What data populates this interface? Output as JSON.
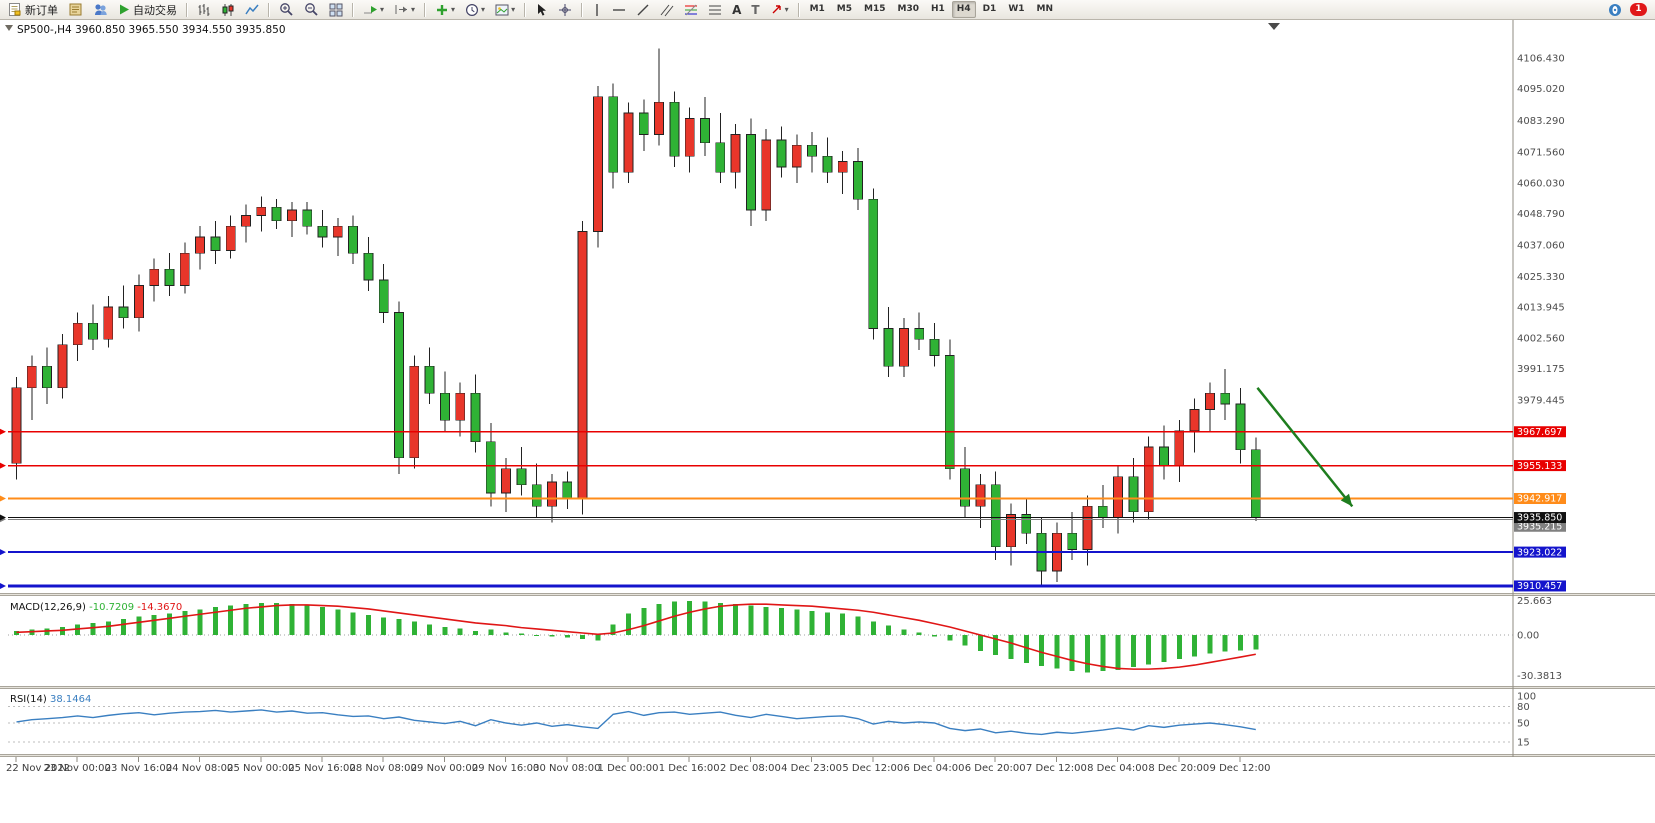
{
  "toolbar": {
    "new_order_label": "新订单",
    "autotrade_label": "自动交易",
    "timeframes": [
      "M1",
      "M5",
      "M15",
      "M30",
      "H1",
      "H4",
      "D1",
      "W1",
      "MN"
    ],
    "active_timeframe": "H4",
    "notification_badge": "1"
  },
  "chart": {
    "symbol_title": "SP500-,H4",
    "ohlc_text": "3960.850 3965.550 3934.550 3935.850"
  },
  "indicators": {
    "macd_label": "MACD(12,26,9)",
    "macd_main_value": "-10.7209",
    "macd_signal_value": "-14.3670",
    "rsi_label": "RSI(14)",
    "rsi_value": "38.1464"
  },
  "chart_data": {
    "type": "candlestick",
    "symbol": "SP500-",
    "timeframe": "H4",
    "ohlc_current": {
      "open": 3960.85,
      "high": 3965.55,
      "low": 3934.55,
      "close": 3935.85
    },
    "ylim": [
      3904,
      4112
    ],
    "price_axis_labels": [
      "4106.430",
      "4095.020",
      "4083.290",
      "4071.560",
      "4060.030",
      "4048.790",
      "4037.060",
      "4025.330",
      "4013.945",
      "4002.560",
      "3991.175",
      "3979.445"
    ],
    "time_labels": [
      "22 Nov 2022",
      "23 Nov 00:00",
      "23 Nov 16:00",
      "24 Nov 08:00",
      "25 Nov 00:00",
      "25 Nov 16:00",
      "28 Nov 08:00",
      "29 Nov 00:00",
      "29 Nov 16:00",
      "30 Nov 08:00",
      "1 Dec 00:00",
      "1 Dec 16:00",
      "2 Dec 08:00",
      "4 Dec 23:00",
      "5 Dec 12:00",
      "6 Dec 04:00",
      "6 Dec 20:00",
      "7 Dec 12:00",
      "8 Dec 04:00",
      "8 Dec 20:00",
      "9 Dec 12:00"
    ],
    "label_every": 4,
    "candles": [
      [
        3956,
        3988,
        3950,
        3984
      ],
      [
        3984,
        3996,
        3972,
        3992
      ],
      [
        3992,
        3999,
        3978,
        3984
      ],
      [
        3984,
        4004,
        3980,
        4000
      ],
      [
        4000,
        4012,
        3994,
        4008
      ],
      [
        4008,
        4015,
        3998,
        4002
      ],
      [
        4002,
        4018,
        3999,
        4014
      ],
      [
        4014,
        4022,
        4006,
        4010
      ],
      [
        4010,
        4026,
        4005,
        4022
      ],
      [
        4022,
        4032,
        4016,
        4028
      ],
      [
        4028,
        4034,
        4018,
        4022
      ],
      [
        4022,
        4038,
        4019,
        4034
      ],
      [
        4034,
        4044,
        4028,
        4040
      ],
      [
        4040,
        4046,
        4030,
        4035
      ],
      [
        4035,
        4048,
        4032,
        4044
      ],
      [
        4044,
        4052,
        4038,
        4048
      ],
      [
        4048,
        4055,
        4042,
        4051
      ],
      [
        4051,
        4054,
        4043,
        4046
      ],
      [
        4046,
        4053,
        4040,
        4050
      ],
      [
        4050,
        4053,
        4041,
        4044
      ],
      [
        4044,
        4050,
        4036,
        4040
      ],
      [
        4040,
        4047,
        4033,
        4044
      ],
      [
        4044,
        4048,
        4030,
        4034
      ],
      [
        4034,
        4040,
        4020,
        4024
      ],
      [
        4024,
        4030,
        4008,
        4012
      ],
      [
        4012,
        4016,
        3952,
        3958
      ],
      [
        3958,
        3996,
        3954,
        3992
      ],
      [
        3992,
        3999,
        3978,
        3982
      ],
      [
        3982,
        3990,
        3968,
        3972
      ],
      [
        3972,
        3986,
        3966,
        3982
      ],
      [
        3982,
        3989,
        3960,
        3964
      ],
      [
        3964,
        3971,
        3940,
        3945
      ],
      [
        3945,
        3958,
        3938,
        3954
      ],
      [
        3954,
        3962,
        3944,
        3948
      ],
      [
        3948,
        3956,
        3936,
        3940
      ],
      [
        3940,
        3952,
        3934,
        3949
      ],
      [
        3949,
        3953,
        3939,
        3943
      ],
      [
        3943,
        4046,
        3937,
        4042
      ],
      [
        4042,
        4096,
        4036,
        4092
      ],
      [
        4092,
        4097,
        4058,
        4064
      ],
      [
        4064,
        4090,
        4060,
        4086
      ],
      [
        4086,
        4091,
        4072,
        4078
      ],
      [
        4078,
        4110,
        4074,
        4090
      ],
      [
        4090,
        4094,
        4066,
        4070
      ],
      [
        4070,
        4088,
        4064,
        4084
      ],
      [
        4084,
        4092,
        4070,
        4075
      ],
      [
        4075,
        4086,
        4060,
        4064
      ],
      [
        4064,
        4082,
        4058,
        4078
      ],
      [
        4078,
        4084,
        4044,
        4050
      ],
      [
        4050,
        4080,
        4046,
        4076
      ],
      [
        4076,
        4081,
        4062,
        4066
      ],
      [
        4066,
        4078,
        4060,
        4074
      ],
      [
        4074,
        4079,
        4064,
        4070
      ],
      [
        4070,
        4077,
        4060,
        4064
      ],
      [
        4064,
        4072,
        4056,
        4068
      ],
      [
        4068,
        4073,
        4050,
        4054
      ],
      [
        4054,
        4058,
        4002,
        4006
      ],
      [
        4006,
        4014,
        3988,
        3992
      ],
      [
        3992,
        4010,
        3988,
        4006
      ],
      [
        4006,
        4012,
        3998,
        4002
      ],
      [
        4002,
        4008,
        3992,
        3996
      ],
      [
        3996,
        4002,
        3950,
        3954
      ],
      [
        3954,
        3962,
        3936,
        3940
      ],
      [
        3940,
        3952,
        3932,
        3948
      ],
      [
        3948,
        3953,
        3920,
        3925
      ],
      [
        3925,
        3941,
        3918,
        3937
      ],
      [
        3937,
        3943,
        3926,
        3930
      ],
      [
        3930,
        3936,
        3911,
        3916
      ],
      [
        3916,
        3934,
        3912,
        3930
      ],
      [
        3930,
        3938,
        3920,
        3924
      ],
      [
        3924,
        3944,
        3918,
        3940
      ],
      [
        3940,
        3948,
        3932,
        3936
      ],
      [
        3936,
        3955,
        3930,
        3951
      ],
      [
        3951,
        3958,
        3934,
        3938
      ],
      [
        3938,
        3966,
        3935,
        3962
      ],
      [
        3962,
        3970,
        3950,
        3955
      ],
      [
        3955,
        3972,
        3949,
        3968
      ],
      [
        3968,
        3980,
        3960,
        3976
      ],
      [
        3976,
        3986,
        3968,
        3982
      ],
      [
        3982,
        3991,
        3972,
        3978
      ],
      [
        3978,
        3984,
        3956,
        3961
      ],
      [
        3961,
        3965.55,
        3934.55,
        3935.85
      ]
    ],
    "price_lines": [
      {
        "price": 3967.697,
        "label": "3967.697",
        "color": "#e80000",
        "width": 1.5
      },
      {
        "price": 3955.133,
        "label": "3955.133",
        "color": "#e80000",
        "width": 1.5
      },
      {
        "price": 3942.917,
        "label": "3942.917",
        "color": "#ff8c1a",
        "width": 2
      },
      {
        "price": 3935.215,
        "label": "3935.215",
        "color": "#808080",
        "width": 1,
        "label_offset": 7
      },
      {
        "price": 3923.022,
        "label": "3923.022",
        "color": "#1414cc",
        "width": 2
      },
      {
        "price": 3910.457,
        "label": "3910.457",
        "color": "#1414cc",
        "width": 3
      }
    ],
    "bid_line": {
      "price": 3935.85,
      "label": "3935.850",
      "color": "#111111"
    },
    "annotation_arrow": {
      "from_index": 81.4,
      "from_price": 3984,
      "to_index": 87.6,
      "to_price": 3940,
      "color": "#1e7d1e"
    },
    "macd": {
      "main": [
        3,
        4,
        5,
        6,
        8,
        9,
        10,
        12,
        14,
        15,
        16,
        18,
        19,
        21,
        22,
        23,
        24,
        24,
        23,
        22,
        21,
        19,
        17,
        15,
        13,
        12,
        10,
        8,
        6,
        5,
        3,
        4,
        2,
        1,
        0,
        -1,
        -2,
        -3,
        -4,
        8,
        16,
        20,
        23,
        25,
        25.5,
        25,
        24,
        23,
        22,
        21,
        20,
        19,
        18,
        17,
        16,
        14,
        10,
        7,
        4,
        2,
        -1,
        -4,
        -8,
        -12,
        -15,
        -18,
        -21,
        -23,
        -25,
        -27,
        -28,
        -27,
        -26,
        -24,
        -22,
        -20,
        -18,
        -16,
        -14,
        -12.5,
        -11.5,
        -10.72
      ],
      "signal": [
        2,
        2.5,
        3,
        3.5,
        4.5,
        5.5,
        6.5,
        8,
        9.5,
        11,
        12.5,
        14,
        15.5,
        17,
        18.5,
        20,
        21,
        22,
        22.5,
        22.5,
        22,
        21.5,
        20.5,
        19.5,
        18,
        16.5,
        15,
        13.5,
        12,
        10.5,
        9,
        8,
        7,
        5.5,
        4.5,
        3.5,
        2.5,
        1.5,
        0.5,
        1.5,
        4,
        7,
        10.5,
        14,
        17,
        19.5,
        21.5,
        22.5,
        23,
        23,
        22.5,
        22,
        21.5,
        20.5,
        19.5,
        18.5,
        17,
        15,
        13,
        11,
        8.5,
        6,
        3,
        0,
        -3,
        -6,
        -9.5,
        -13,
        -16,
        -19,
        -21.5,
        -23.5,
        -25,
        -25.5,
        -25.5,
        -25,
        -24,
        -22.5,
        -20.5,
        -18.5,
        -16.5,
        -14.37
      ],
      "axis_labels": [
        "25.663",
        "0.00",
        "-30.3813"
      ],
      "axis_values": [
        25.663,
        0,
        -30.3813
      ]
    },
    "rsi": {
      "values": [
        52,
        56,
        58,
        60,
        63,
        60,
        64,
        67,
        69,
        65,
        68,
        70,
        71,
        73,
        70,
        72,
        74,
        70,
        72,
        68,
        69,
        65,
        62,
        63,
        58,
        61,
        55,
        52,
        49,
        53,
        45,
        56,
        50,
        46,
        50,
        44,
        47,
        43,
        40,
        66,
        71,
        64,
        69,
        70,
        66,
        68,
        70,
        64,
        60,
        66,
        62,
        58,
        60,
        62,
        63,
        58,
        48,
        53,
        50,
        52,
        50,
        40,
        36,
        39,
        32,
        35,
        31,
        29,
        33,
        31,
        34,
        37,
        41,
        37,
        45,
        42,
        46,
        48,
        50,
        47,
        43,
        38
      ],
      "levels": [
        80,
        50,
        15
      ],
      "axis_labels": [
        "100",
        "80",
        "50",
        "15"
      ],
      "axis_values": [
        100,
        80,
        50,
        15
      ]
    },
    "colors": {
      "bull": "#e8362a",
      "bear": "#2fb235",
      "wick": "#222222",
      "macd_signal": "#e01616",
      "rsi_line": "#3a7fc1"
    }
  }
}
